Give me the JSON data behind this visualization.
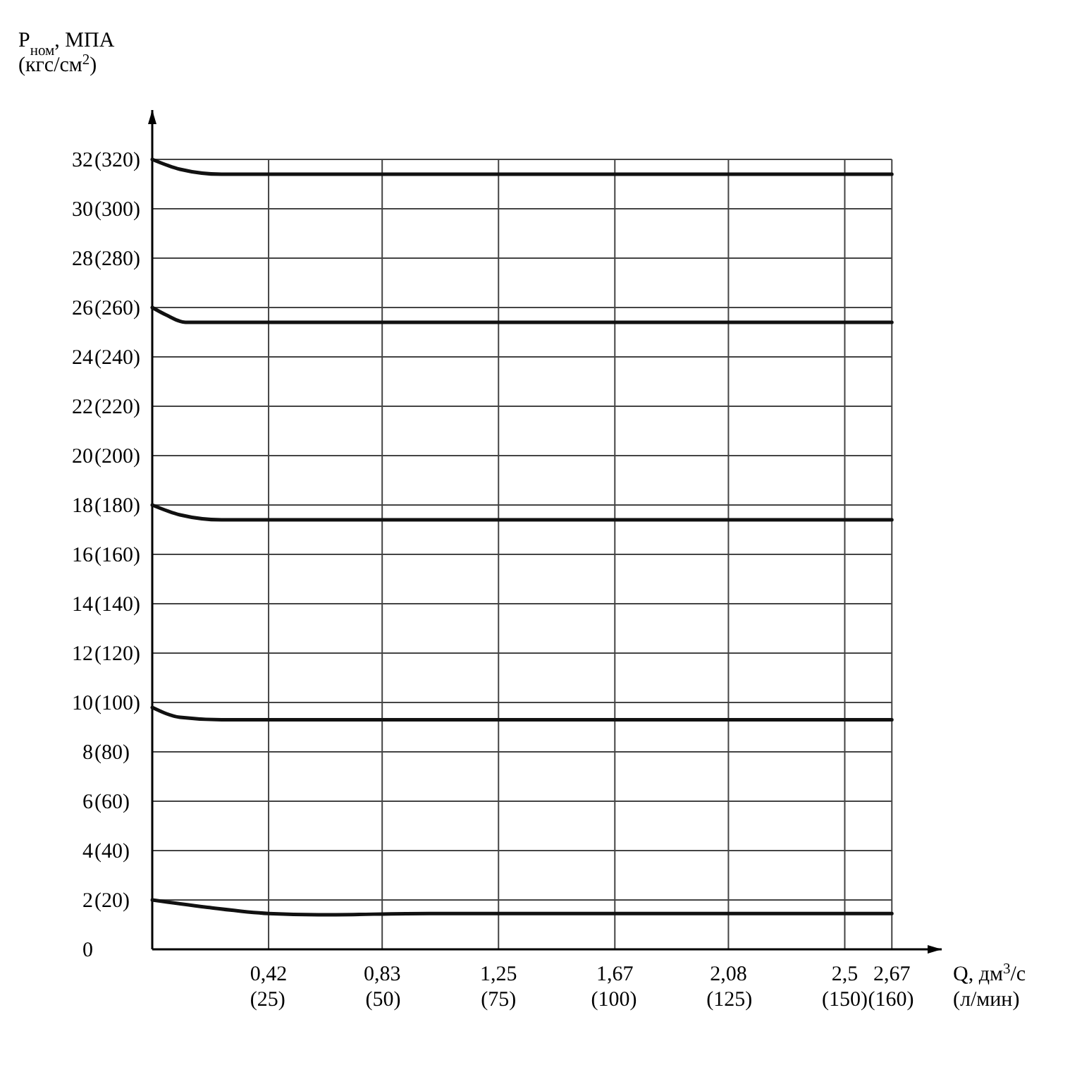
{
  "chart_data": {
    "type": "line",
    "xlabel": "Q, дм$^{3}$/с",
    "x2label": "(л/мин)",
    "ylabel": "P$_{ном}$, МПА\n(кгс/см$^{2}$)",
    "xlim": [
      0,
      2.85
    ],
    "ylim": [
      0,
      34
    ],
    "x2lim": [
      0,
      171
    ],
    "y2lim": [
      0,
      340
    ],
    "xticks": [
      {
        "value": 0.42,
        "label": "0,42"
      },
      {
        "value": 0.83,
        "label": "0,83"
      },
      {
        "value": 1.25,
        "label": "1,25"
      },
      {
        "value": 1.67,
        "label": "1,67"
      },
      {
        "value": 2.08,
        "label": "2,08"
      },
      {
        "value": 2.5,
        "label": "2,5"
      },
      {
        "value": 2.67,
        "label": "2,67"
      }
    ],
    "x2ticks": [
      {
        "value": 25,
        "label": "(25)"
      },
      {
        "value": 50,
        "label": "(50)"
      },
      {
        "value": 75,
        "label": "(75)"
      },
      {
        "value": 100,
        "label": "(100)"
      },
      {
        "value": 125,
        "label": "(125)"
      },
      {
        "value": 150,
        "label": "(150)"
      },
      {
        "value": 160,
        "label": "(160)"
      }
    ],
    "yticks": [
      0,
      2,
      4,
      6,
      8,
      10,
      12,
      14,
      16,
      18,
      20,
      22,
      24,
      26,
      28,
      30,
      32
    ],
    "y2ticks": [
      {
        "value": 20,
        "label": "(20)"
      },
      {
        "value": 40,
        "label": "(40)"
      },
      {
        "value": 60,
        "label": "(60)"
      },
      {
        "value": 80,
        "label": "(80)"
      },
      {
        "value": 100,
        "label": "(100)"
      },
      {
        "value": 120,
        "label": "(120)"
      },
      {
        "value": 140,
        "label": "(140)"
      },
      {
        "value": 160,
        "label": "(160)"
      },
      {
        "value": 180,
        "label": "(180)"
      },
      {
        "value": 200,
        "label": "(200)"
      },
      {
        "value": 220,
        "label": "(220)"
      },
      {
        "value": 240,
        "label": "(240)"
      },
      {
        "value": 260,
        "label": "(260)"
      },
      {
        "value": 280,
        "label": "(280)"
      },
      {
        "value": 300,
        "label": "(300)"
      },
      {
        "value": 320,
        "label": "(320)"
      }
    ],
    "grid": true,
    "line_style": "solid",
    "marker": "none",
    "series": [
      {
        "color": "#111111",
        "x": [
          0,
          0.1,
          0.25,
          0.5,
          1,
          2,
          2.67
        ],
        "values": [
          32,
          31.6,
          31.4,
          31.4,
          31.4,
          31.4,
          31.4
        ]
      },
      {
        "color": "#111111",
        "x": [
          0,
          0.05,
          0.12,
          0.5,
          1,
          2,
          2.67
        ],
        "values": [
          26,
          25.7,
          25.4,
          25.4,
          25.4,
          25.4,
          25.4
        ]
      },
      {
        "color": "#111111",
        "x": [
          0,
          0.1,
          0.25,
          0.5,
          1,
          2,
          2.67
        ],
        "values": [
          18,
          17.6,
          17.4,
          17.4,
          17.4,
          17.4,
          17.4
        ]
      },
      {
        "color": "#111111",
        "x": [
          0,
          0.1,
          0.25,
          0.5,
          1,
          2,
          2.67
        ],
        "values": [
          9.8,
          9.4,
          9.3,
          9.3,
          9.3,
          9.3,
          9.3
        ]
      },
      {
        "color": "#111111",
        "x": [
          0,
          0.2,
          0.42,
          0.6,
          1,
          2,
          2.67
        ],
        "values": [
          2,
          1.7,
          1.45,
          1.4,
          1.45,
          1.45,
          1.45
        ]
      }
    ]
  }
}
